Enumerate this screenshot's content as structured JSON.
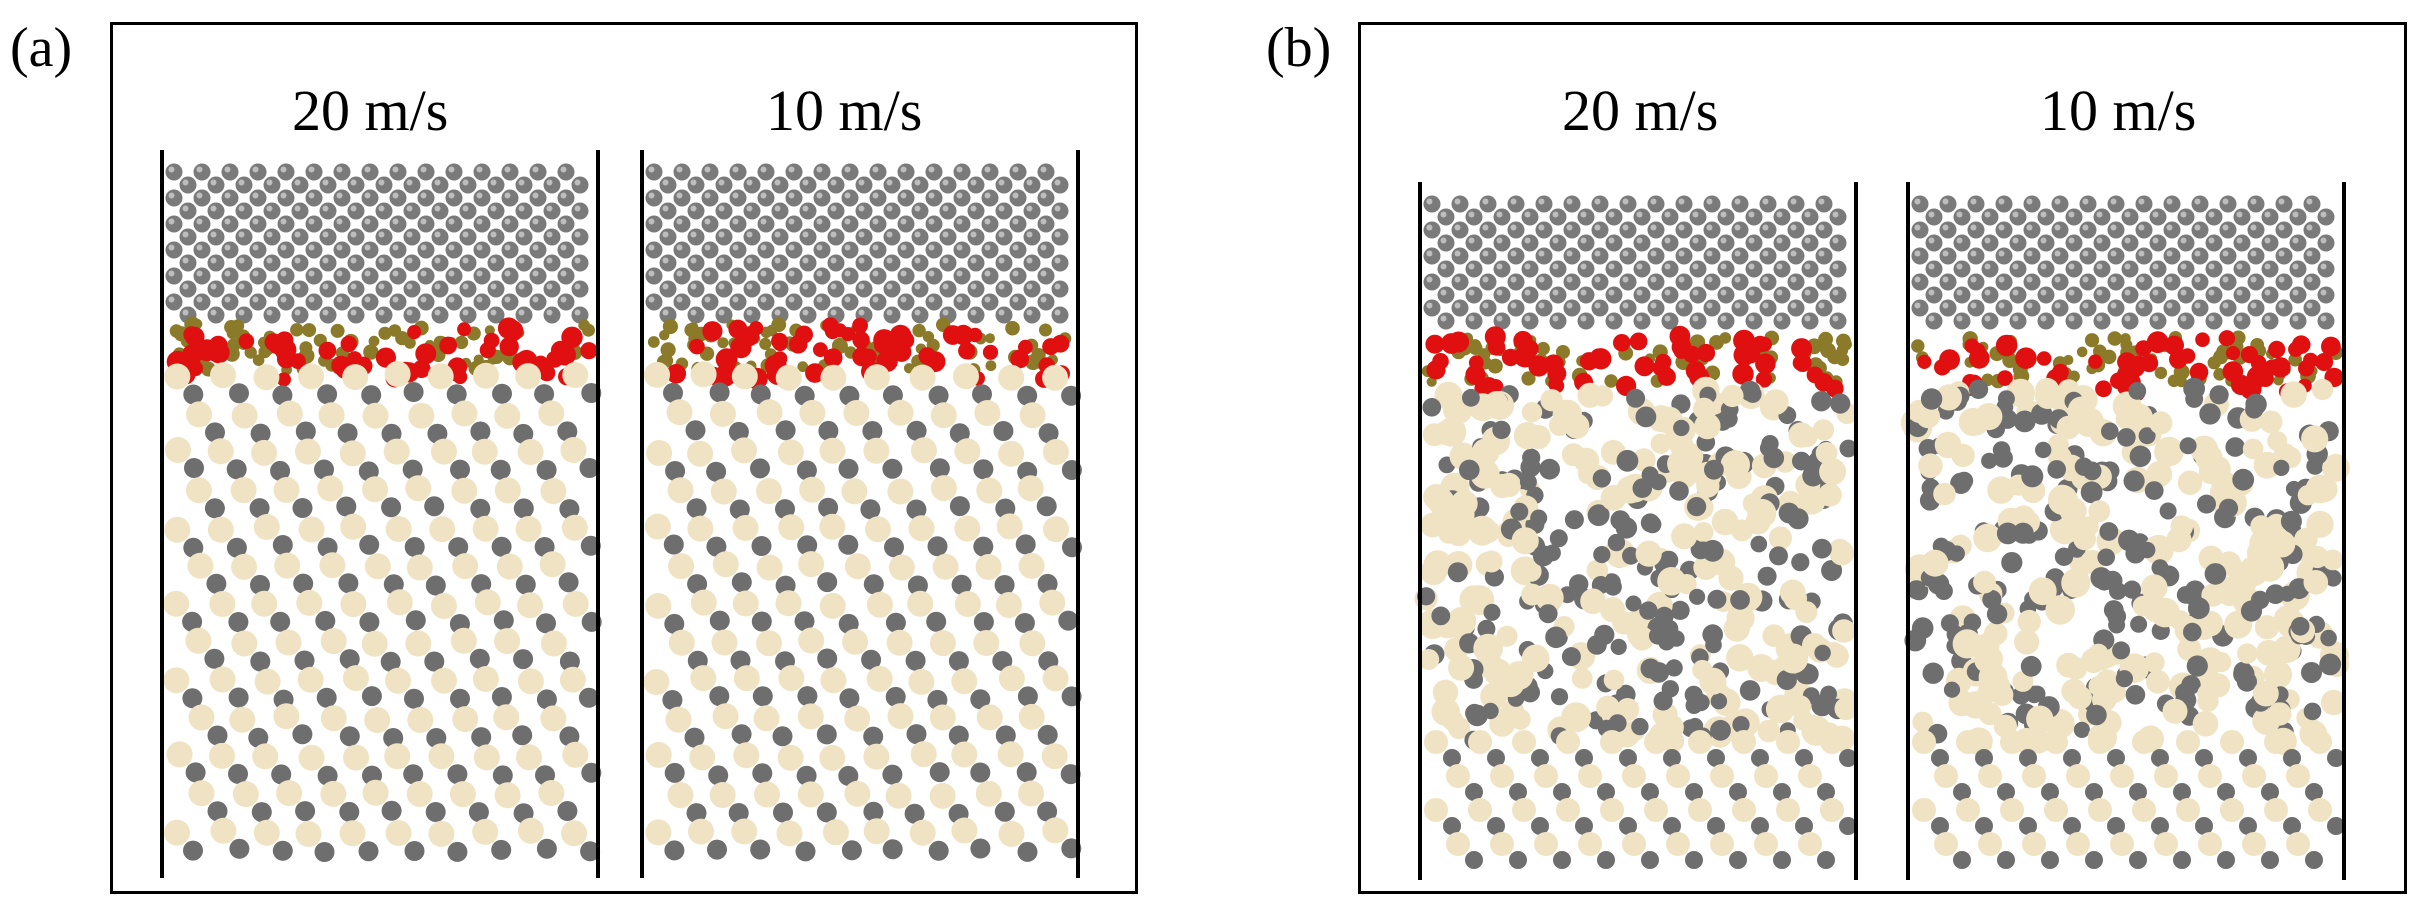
{
  "panels": [
    {
      "label": "(a)",
      "cells": [
        {
          "speed": "20 m/s",
          "structure": "crystalline"
        },
        {
          "speed": "10 m/s",
          "structure": "crystalline"
        }
      ]
    },
    {
      "label": "(b)",
      "cells": [
        {
          "speed": "20 m/s",
          "structure": "amorphous"
        },
        {
          "speed": "10 m/s",
          "structure": "amorphous"
        }
      ]
    }
  ],
  "colors": {
    "frame": "#000000",
    "tip_atom": "#7a7a7a",
    "tip_atom_highlight": "#bdbdbd",
    "oxygen_atom": "#e01010",
    "interface_atom": "#8a7a2a",
    "silicon_atom": "#efe3c4",
    "carbon_atom": "#6e6e6e"
  }
}
